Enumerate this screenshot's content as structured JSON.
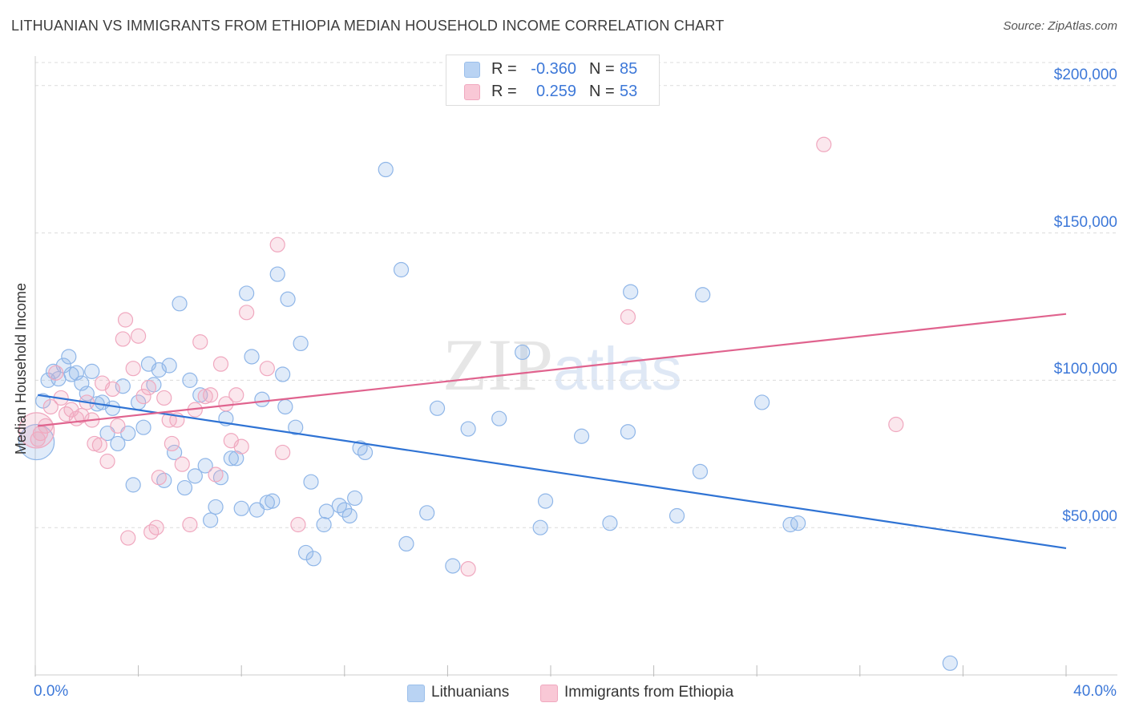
{
  "chart_data": {
    "type": "scatter",
    "title": "LITHUANIAN VS IMMIGRANTS FROM ETHIOPIA MEDIAN HOUSEHOLD INCOME CORRELATION CHART",
    "source": "Source: ZipAtlas.com",
    "xlabel": "",
    "ylabel": "Median Household Income",
    "xlim": [
      0,
      40
    ],
    "ylim": [
      0,
      210000
    ],
    "x_tick_labels": [
      "0.0%",
      "40.0%"
    ],
    "y_ticks": [
      {
        "value": 50000,
        "label": "$50,000"
      },
      {
        "value": 100000,
        "label": "$100,000"
      },
      {
        "value": 150000,
        "label": "$150,000"
      },
      {
        "value": 200000,
        "label": "$200,000"
      }
    ],
    "watermark": {
      "zip": "ZIP",
      "atlas": "atlas"
    },
    "legend": {
      "r_label": "R =",
      "n_label": "N =",
      "entries": [
        {
          "name": "Lithuanians",
          "r": "-0.360",
          "n": "85",
          "color": "#9bbfeb",
          "fill": "#b9d3f3"
        },
        {
          "name": "Immigrants from Ethiopia",
          "r": "0.259",
          "n": "53",
          "color": "#f0a8bf",
          "fill": "#f9c8d6"
        }
      ]
    },
    "series": [
      {
        "name": "Lithuanians",
        "color": "#8fb6e8",
        "line_color": "#2f73d4",
        "trend": {
          "x0": 0.1,
          "y0": 95000,
          "x1": 40,
          "y1": 43000
        },
        "points": [
          [
            0.3,
            93000
          ],
          [
            0.5,
            100000
          ],
          [
            0.7,
            103000
          ],
          [
            0.9,
            100500
          ],
          [
            1.1,
            105000
          ],
          [
            1.3,
            108000
          ],
          [
            1.4,
            102000
          ],
          [
            1.6,
            102500
          ],
          [
            1.8,
            99000
          ],
          [
            2.0,
            95500
          ],
          [
            2.2,
            103000
          ],
          [
            2.4,
            92000
          ],
          [
            2.6,
            92500
          ],
          [
            2.8,
            82000
          ],
          [
            3.0,
            90500
          ],
          [
            3.2,
            78500
          ],
          [
            3.4,
            98000
          ],
          [
            3.6,
            82000
          ],
          [
            3.8,
            64500
          ],
          [
            4.0,
            92500
          ],
          [
            4.2,
            84000
          ],
          [
            4.4,
            105500
          ],
          [
            4.6,
            98500
          ],
          [
            4.8,
            103500
          ],
          [
            5.0,
            66000
          ],
          [
            5.2,
            105000
          ],
          [
            5.4,
            75500
          ],
          [
            5.6,
            126000
          ],
          [
            5.8,
            63500
          ],
          [
            6.0,
            100000
          ],
          [
            6.2,
            67500
          ],
          [
            6.4,
            95000
          ],
          [
            6.6,
            71000
          ],
          [
            6.8,
            52500
          ],
          [
            7.0,
            57000
          ],
          [
            7.2,
            67000
          ],
          [
            7.4,
            87000
          ],
          [
            7.6,
            73500
          ],
          [
            7.8,
            73500
          ],
          [
            8.0,
            56500
          ],
          [
            8.2,
            129500
          ],
          [
            8.4,
            108000
          ],
          [
            8.6,
            56000
          ],
          [
            8.8,
            93500
          ],
          [
            9.0,
            58500
          ],
          [
            9.2,
            59000
          ],
          [
            9.4,
            136000
          ],
          [
            9.6,
            102000
          ],
          [
            9.7,
            91000
          ],
          [
            9.8,
            127500
          ],
          [
            10.1,
            84000
          ],
          [
            10.3,
            112500
          ],
          [
            10.5,
            41500
          ],
          [
            10.7,
            65500
          ],
          [
            10.8,
            39500
          ],
          [
            11.2,
            51000
          ],
          [
            11.3,
            55500
          ],
          [
            11.8,
            57500
          ],
          [
            12.0,
            56000
          ],
          [
            12.2,
            54000
          ],
          [
            12.4,
            60000
          ],
          [
            12.6,
            77000
          ],
          [
            12.8,
            75500
          ],
          [
            13.6,
            171500
          ],
          [
            14.2,
            137500
          ],
          [
            14.4,
            44500
          ],
          [
            15.2,
            55000
          ],
          [
            15.6,
            90500
          ],
          [
            16.2,
            37000
          ],
          [
            16.8,
            83500
          ],
          [
            18.0,
            87000
          ],
          [
            18.9,
            109500
          ],
          [
            19.6,
            50000
          ],
          [
            19.8,
            59000
          ],
          [
            21.2,
            81000
          ],
          [
            22.3,
            51500
          ],
          [
            23.0,
            82500
          ],
          [
            23.1,
            130000
          ],
          [
            24.9,
            54000
          ],
          [
            25.8,
            69000
          ],
          [
            25.9,
            129000
          ],
          [
            28.2,
            92500
          ],
          [
            29.3,
            51000
          ],
          [
            29.6,
            51500
          ],
          [
            35.5,
            4000
          ]
        ]
      },
      {
        "name": "Immigrants from Ethiopia",
        "color": "#f0a8bf",
        "line_color": "#e0638e",
        "trend": {
          "x0": 0.1,
          "y0": 84500,
          "x1": 40,
          "y1": 122500
        },
        "points": [
          [
            0.2,
            82000
          ],
          [
            0.4,
            84500
          ],
          [
            0.6,
            91000
          ],
          [
            0.8,
            102500
          ],
          [
            1.0,
            94000
          ],
          [
            1.2,
            88500
          ],
          [
            1.4,
            90000
          ],
          [
            1.6,
            87000
          ],
          [
            1.8,
            88000
          ],
          [
            2.0,
            92500
          ],
          [
            2.2,
            86500
          ],
          [
            2.3,
            78500
          ],
          [
            2.5,
            78000
          ],
          [
            2.6,
            99000
          ],
          [
            2.8,
            72500
          ],
          [
            3.0,
            97000
          ],
          [
            3.2,
            84500
          ],
          [
            3.4,
            114000
          ],
          [
            3.5,
            120500
          ],
          [
            3.6,
            46500
          ],
          [
            3.8,
            104000
          ],
          [
            4.0,
            115000
          ],
          [
            4.2,
            94500
          ],
          [
            4.4,
            97500
          ],
          [
            4.5,
            48500
          ],
          [
            4.7,
            50000
          ],
          [
            4.8,
            67000
          ],
          [
            5.0,
            94000
          ],
          [
            5.2,
            86500
          ],
          [
            5.3,
            78500
          ],
          [
            5.5,
            86500
          ],
          [
            5.7,
            71500
          ],
          [
            6.0,
            51000
          ],
          [
            6.2,
            90000
          ],
          [
            6.4,
            113000
          ],
          [
            6.6,
            94500
          ],
          [
            6.8,
            95000
          ],
          [
            7.0,
            68000
          ],
          [
            7.2,
            105500
          ],
          [
            7.4,
            92000
          ],
          [
            7.6,
            79500
          ],
          [
            7.8,
            95000
          ],
          [
            8.0,
            77500
          ],
          [
            8.2,
            123000
          ],
          [
            9.0,
            104000
          ],
          [
            9.4,
            146000
          ],
          [
            9.6,
            75500
          ],
          [
            10.2,
            51000
          ],
          [
            16.8,
            36000
          ],
          [
            23.0,
            121500
          ],
          [
            30.6,
            180000
          ],
          [
            33.4,
            85000
          ],
          [
            0.1,
            80000
          ]
        ]
      }
    ],
    "large_points": [
      {
        "series": "Lithuanians",
        "x": 0.05,
        "y": 79000
      },
      {
        "series": "Immigrants from Ethiopia",
        "x": 0.05,
        "y": 83000
      }
    ]
  }
}
